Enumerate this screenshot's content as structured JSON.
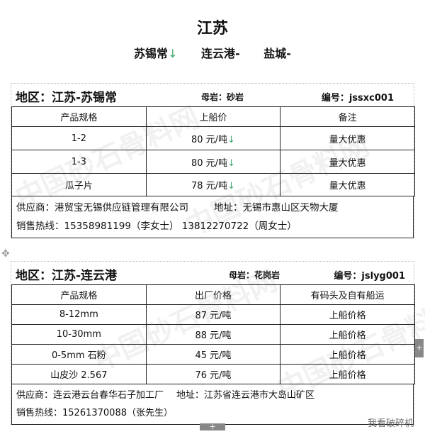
{
  "title": "江苏",
  "subtitle": [
    {
      "name": "苏锡常",
      "trend": "↓"
    },
    {
      "name": "连云港",
      "trend": "-"
    },
    {
      "name": "盐城",
      "trend": "-"
    }
  ],
  "cards": [
    {
      "region": "地区：江苏-苏锡常",
      "rock": "母岩：砂岩",
      "code": "编号：jssxc001",
      "headers": [
        "产品规格",
        "上船价",
        "备注"
      ],
      "rows": [
        [
          "1-2",
          "80 元/吨",
          "↓",
          "量大优惠"
        ],
        [
          "1-3",
          "80 元/吨",
          "↓",
          "量大优惠"
        ],
        [
          "瓜子片",
          "78 元/吨",
          "↓",
          "量大优惠"
        ]
      ],
      "supplier": "供应商：港贸宝无锡供应链管理有限公司",
      "address": "地址：无锡市惠山区天物大厦",
      "hotline": "销售热线：15358981199（李女士）  13812270722（周女士）"
    },
    {
      "region": "地区：江苏-连云港",
      "rock": "母岩：花岗岩",
      "code": "编号：jslyg001",
      "headers": [
        "产品规格",
        "出厂价格",
        "有码头及自有船运"
      ],
      "rows": [
        [
          "8-12mm",
          "87 元/吨",
          "",
          "上船价格"
        ],
        [
          "10-30mm",
          "88 元/吨",
          "",
          "上船价格"
        ],
        [
          "0-5mm 石粉",
          "45 元/吨",
          "",
          "上船价格"
        ],
        [
          "山皮沙 2.567",
          "76 元/吨",
          "",
          "上船价格"
        ]
      ],
      "supplier": "供应商：连云港云台春华石子加工厂",
      "address": "地址：江苏省连云港市大岛山矿区",
      "hotline": "销售热线：15261370088（张先生）"
    }
  ],
  "watermark": "中国砂石骨料网",
  "brand": "我看破碎机",
  "colors": {
    "down": "#3aa86a"
  }
}
